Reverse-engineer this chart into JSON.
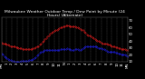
{
  "title": "Milwaukee Weather Outdoor Temp / Dew Point by Minute (24 Hours) (Alternate)",
  "bg_color": "#000000",
  "grid_color": "#666666",
  "temp_color": "#ff2020",
  "dew_color": "#2222ff",
  "ylim": [
    10,
    75
  ],
  "xlim": [
    0,
    1440
  ],
  "yticks": [
    10,
    20,
    30,
    40,
    50,
    60,
    70
  ],
  "ytick_labels": [
    "10",
    "20",
    "30",
    "40",
    "50",
    "60",
    "70"
  ],
  "xtick_labels": [
    "MN",
    "1",
    "2",
    "3",
    "4",
    "5",
    "6",
    "7",
    "8",
    "9",
    "10",
    "11",
    "N",
    "1",
    "2",
    "3",
    "4",
    "5",
    "6",
    "7",
    "8",
    "9",
    "10",
    "11",
    "MN"
  ],
  "title_color": "#ffffff",
  "title_fontsize": 3.2,
  "tick_color": "#ffffff",
  "tick_fontsize": 2.8,
  "temp_data_x": [
    0,
    15,
    30,
    45,
    60,
    75,
    90,
    105,
    120,
    135,
    150,
    165,
    180,
    195,
    210,
    225,
    240,
    255,
    270,
    285,
    300,
    315,
    330,
    345,
    360,
    375,
    390,
    405,
    420,
    435,
    450,
    465,
    480,
    495,
    510,
    525,
    540,
    555,
    570,
    585,
    600,
    615,
    630,
    645,
    660,
    675,
    690,
    705,
    720,
    735,
    750,
    765,
    780,
    795,
    810,
    825,
    840,
    855,
    870,
    885,
    900,
    915,
    930,
    945,
    960,
    975,
    990,
    1005,
    1020,
    1035,
    1050,
    1065,
    1080,
    1095,
    1110,
    1125,
    1140,
    1155,
    1170,
    1185,
    1200,
    1215,
    1230,
    1245,
    1260,
    1275,
    1290,
    1305,
    1320,
    1335,
    1350,
    1365,
    1380,
    1395,
    1410,
    1425,
    1440
  ],
  "temp_data_y": [
    38,
    37,
    37,
    36,
    35,
    35,
    34,
    33,
    33,
    32,
    32,
    31,
    31,
    30,
    30,
    30,
    29,
    29,
    29,
    29,
    29,
    29,
    29,
    29,
    30,
    30,
    31,
    32,
    33,
    35,
    37,
    39,
    41,
    43,
    45,
    47,
    49,
    51,
    53,
    54,
    55,
    56,
    57,
    58,
    59,
    60,
    61,
    62,
    62,
    63,
    63,
    63,
    62,
    62,
    62,
    62,
    62,
    61,
    60,
    59,
    58,
    57,
    56,
    54,
    52,
    50,
    49,
    48,
    47,
    46,
    44,
    43,
    42,
    41,
    40,
    39,
    38,
    37,
    37,
    36,
    36,
    35,
    35,
    34,
    33,
    33,
    32,
    31,
    31,
    30,
    30,
    29,
    29,
    28,
    28,
    27,
    27
  ],
  "dew_data_x": [
    0,
    15,
    30,
    45,
    60,
    75,
    90,
    105,
    120,
    135,
    150,
    165,
    180,
    195,
    210,
    225,
    240,
    255,
    270,
    285,
    300,
    315,
    330,
    345,
    360,
    375,
    390,
    405,
    420,
    435,
    450,
    465,
    480,
    495,
    510,
    525,
    540,
    555,
    570,
    585,
    600,
    615,
    630,
    645,
    660,
    675,
    690,
    705,
    720,
    735,
    750,
    765,
    780,
    795,
    810,
    825,
    840,
    855,
    870,
    885,
    900,
    915,
    930,
    945,
    960,
    975,
    990,
    1005,
    1020,
    1035,
    1050,
    1065,
    1080,
    1095,
    1110,
    1125,
    1140,
    1155,
    1170,
    1185,
    1200,
    1215,
    1230,
    1245,
    1260,
    1275,
    1290,
    1305,
    1320,
    1335,
    1350,
    1365,
    1380,
    1395,
    1410,
    1425,
    1440
  ],
  "dew_data_y": [
    22,
    20,
    18,
    17,
    15,
    14,
    13,
    12,
    11,
    11,
    10,
    10,
    10,
    10,
    10,
    11,
    11,
    11,
    11,
    11,
    11,
    12,
    12,
    13,
    14,
    15,
    17,
    19,
    21,
    23,
    24,
    25,
    26,
    27,
    27,
    27,
    27,
    27,
    27,
    27,
    27,
    27,
    27,
    27,
    27,
    28,
    28,
    28,
    28,
    29,
    30,
    29,
    28,
    27,
    27,
    27,
    28,
    28,
    28,
    27,
    27,
    28,
    30,
    31,
    32,
    33,
    33,
    33,
    33,
    33,
    33,
    33,
    32,
    31,
    30,
    30,
    30,
    29,
    28,
    27,
    26,
    25,
    25,
    25,
    25,
    24,
    24,
    23,
    23,
    22,
    22,
    21,
    21,
    20,
    20,
    19,
    18
  ]
}
